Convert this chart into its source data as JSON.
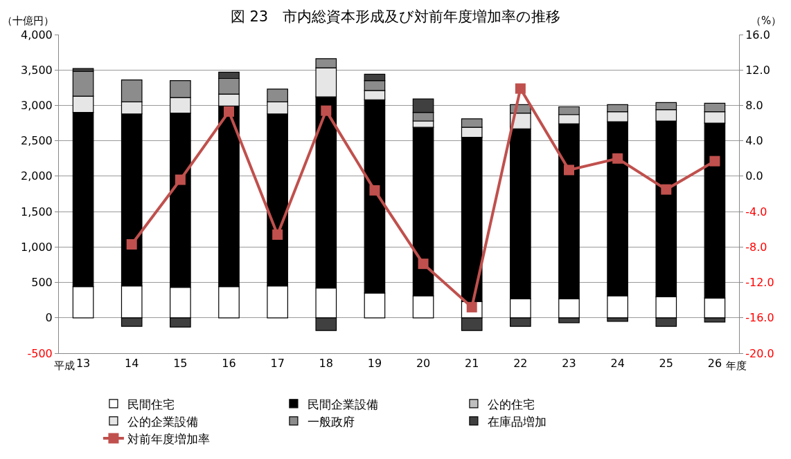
{
  "chart_data": {
    "type": "bar",
    "stacked": true,
    "title": "図 23　市内総資本形成及び対前年度増加率の推移",
    "ylabel": "（十億円）",
    "y2label": "（%）",
    "annotations": [
      "平成",
      "年度"
    ],
    "categories": [
      "13",
      "14",
      "15",
      "16",
      "17",
      "18",
      "19",
      "20",
      "21",
      "22",
      "23",
      "24",
      "25",
      "26"
    ],
    "series": [
      {
        "name": "民間住宅",
        "color": "#ffffff",
        "values": [
          440,
          450,
          430,
          440,
          450,
          420,
          350,
          310,
          230,
          270,
          270,
          310,
          300,
          280
        ]
      },
      {
        "name": "民間企業設備",
        "color": "#000000",
        "values": [
          2460,
          2430,
          2460,
          2550,
          2430,
          2700,
          2730,
          2380,
          2320,
          2400,
          2470,
          2460,
          2480,
          2470
        ]
      },
      {
        "name": "公的住宅",
        "color": "#bfbfbf",
        "values": [
          null,
          null,
          null,
          null,
          null,
          null,
          null,
          null,
          null,
          null,
          null,
          null,
          null,
          null
        ]
      },
      {
        "name": "公的企業設備",
        "color": "#e6e6e6",
        "values": [
          230,
          170,
          220,
          170,
          170,
          410,
          130,
          90,
          140,
          220,
          130,
          140,
          160,
          160
        ]
      },
      {
        "name": "一般政府",
        "color": "#8c8c8c",
        "values": [
          350,
          310,
          240,
          220,
          180,
          130,
          140,
          120,
          120,
          120,
          110,
          100,
          100,
          120
        ]
      },
      {
        "name": "在庫品増加",
        "color": "#404040",
        "values": [
          40,
          -120,
          -130,
          90,
          null,
          -180,
          90,
          190,
          -180,
          -120,
          -70,
          -50,
          -120,
          -60
        ]
      },
      {
        "name": "対前年度増加率",
        "type": "line",
        "axis": "y2",
        "color": "#c0504d",
        "marker": "square",
        "values": [
          null,
          -7.7,
          -0.4,
          7.3,
          -6.6,
          7.4,
          -1.6,
          -9.9,
          -14.8,
          9.9,
          0.7,
          2.0,
          -1.5,
          1.7
        ]
      }
    ],
    "ylim": [
      -500,
      4000
    ],
    "yticks": [
      {
        "value": -500,
        "label": "-500"
      },
      0,
      500,
      {
        "value": 1000,
        "label": "1,000"
      },
      {
        "value": 1500,
        "label": "1,500"
      },
      {
        "value": 2000,
        "label": "2,000"
      },
      {
        "value": 2500,
        "label": "2,500"
      },
      {
        "value": 3000,
        "label": "3,000"
      },
      {
        "value": 3500,
        "label": "3,500"
      },
      {
        "value": 4000,
        "label": "4,000"
      }
    ],
    "y2lim": [
      -20,
      16
    ],
    "y2ticks": [
      {
        "value": -20,
        "label": "-20.0"
      },
      {
        "value": -16,
        "label": "-16.0"
      },
      {
        "value": -12,
        "label": "-12.0"
      },
      {
        "value": -8,
        "label": "-8.0"
      },
      {
        "value": -4,
        "label": "-4.0"
      },
      {
        "value": 0,
        "label": "0.0"
      },
      {
        "value": 4,
        "label": "4.0"
      },
      {
        "value": 8,
        "label": "8.0"
      },
      {
        "value": 12,
        "label": "12.0"
      },
      {
        "value": 16,
        "label": "16.0"
      }
    ],
    "grid": "y",
    "legend": "bottom"
  }
}
